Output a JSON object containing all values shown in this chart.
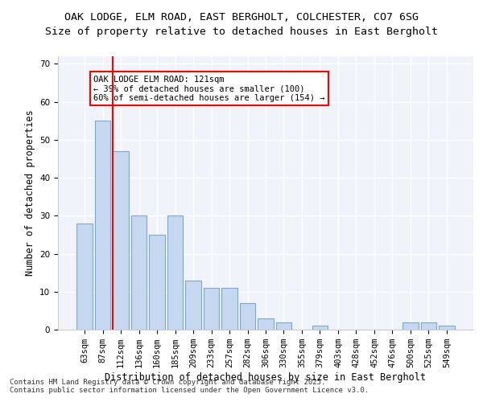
{
  "title1": "OAK LODGE, ELM ROAD, EAST BERGHOLT, COLCHESTER, CO7 6SG",
  "title2": "Size of property relative to detached houses in East Bergholt",
  "xlabel": "Distribution of detached houses by size in East Bergholt",
  "ylabel": "Number of detached properties",
  "categories": [
    "63sqm",
    "87sqm",
    "112sqm",
    "136sqm",
    "160sqm",
    "185sqm",
    "209sqm",
    "233sqm",
    "257sqm",
    "282sqm",
    "306sqm",
    "330sqm",
    "355sqm",
    "379sqm",
    "403sqm",
    "428sqm",
    "452sqm",
    "476sqm",
    "500sqm",
    "525sqm",
    "549sqm"
  ],
  "values": [
    28,
    55,
    47,
    30,
    25,
    30,
    13,
    11,
    11,
    7,
    3,
    2,
    0,
    1,
    0,
    0,
    0,
    0,
    2,
    2,
    1
  ],
  "bar_color": "#c5d8f0",
  "bar_edge_color": "#7aa8d4",
  "red_line_index": 2,
  "red_line_x": 2,
  "annotation_text": "OAK LODGE ELM ROAD: 121sqm\n← 39% of detached houses are smaller (100)\n60% of semi-detached houses are larger (154) →",
  "annotation_box_color": "white",
  "annotation_box_edge_color": "red",
  "ylim": [
    0,
    72
  ],
  "yticks": [
    0,
    10,
    20,
    30,
    40,
    50,
    60,
    70
  ],
  "background_color": "#f0f4fa",
  "grid_color": "#ffffff",
  "footer": "Contains HM Land Registry data © Crown copyright and database right 2025.\nContains public sector information licensed under the Open Government Licence v3.0.",
  "title_fontsize": 9.5,
  "axis_label_fontsize": 8.5,
  "tick_fontsize": 7.5,
  "annotation_fontsize": 7.5
}
